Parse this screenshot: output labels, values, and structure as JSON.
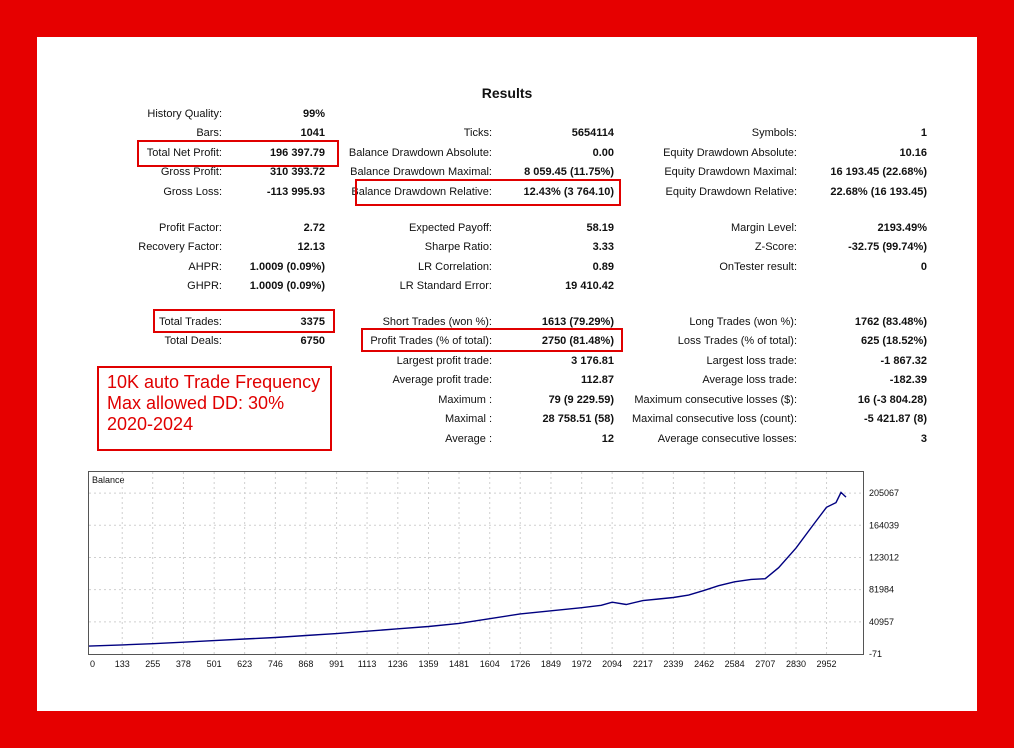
{
  "title": "Results",
  "col1": [
    {
      "label": "History Quality:",
      "value": "99%"
    },
    {
      "label": "Bars:",
      "value": "1041"
    },
    {
      "label": "Total Net Profit:",
      "value": "196 397.79"
    },
    {
      "label": "Gross Profit:",
      "value": "310 393.72"
    },
    {
      "label": "Gross Loss:",
      "value": "-113 995.93"
    },
    {
      "label": "Profit Factor:",
      "value": "2.72"
    },
    {
      "label": "Recovery Factor:",
      "value": "12.13"
    },
    {
      "label": "AHPR:",
      "value": "1.0009 (0.09%)"
    },
    {
      "label": "GHPR:",
      "value": "1.0009 (0.09%)"
    },
    {
      "label": "Total Trades:",
      "value": "3375"
    },
    {
      "label": "Total Deals:",
      "value": "6750"
    }
  ],
  "col2": [
    {
      "label": "Ticks:",
      "value": "5654114"
    },
    {
      "label": "Balance Drawdown Absolute:",
      "value": "0.00"
    },
    {
      "label": "Balance Drawdown Maximal:",
      "value": "8 059.45 (11.75%)"
    },
    {
      "label": "Balance Drawdown Relative:",
      "value": "12.43% (3 764.10)"
    },
    {
      "label": "Expected Payoff:",
      "value": "58.19"
    },
    {
      "label": "Sharpe Ratio:",
      "value": "3.33"
    },
    {
      "label": "LR Correlation:",
      "value": "0.89"
    },
    {
      "label": "LR Standard Error:",
      "value": "19 410.42"
    },
    {
      "label": "Short Trades (won %):",
      "value": "1613 (79.29%)"
    },
    {
      "label": "Profit Trades (% of total):",
      "value": "2750 (81.48%)"
    },
    {
      "label": "Largest profit trade:",
      "value": "3 176.81"
    },
    {
      "label": "Average profit trade:",
      "value": "112.87"
    },
    {
      "label": "Maximum :",
      "value": "79 (9 229.59)"
    },
    {
      "label": "Maximal :",
      "value": "28 758.51 (58)"
    },
    {
      "label": "Average :",
      "value": "12"
    }
  ],
  "col3": [
    {
      "label": "Symbols:",
      "value": "1"
    },
    {
      "label": "Equity Drawdown Absolute:",
      "value": "10.16"
    },
    {
      "label": "Equity Drawdown Maximal:",
      "value": "16 193.45 (22.68%)"
    },
    {
      "label": "Equity Drawdown Relative:",
      "value": "22.68% (16 193.45)"
    },
    {
      "label": "Margin Level:",
      "value": "2193.49%"
    },
    {
      "label": "Z-Score:",
      "value": "-32.75 (99.74%)"
    },
    {
      "label": "OnTester result:",
      "value": "0"
    },
    {
      "label": "Long Trades (won %):",
      "value": "1762 (83.48%)"
    },
    {
      "label": "Loss Trades (% of total):",
      "value": "625 (18.52%)"
    },
    {
      "label": "Largest loss trade:",
      "value": "-1 867.32"
    },
    {
      "label": "Average loss trade:",
      "value": "-182.39"
    },
    {
      "label": "Maximum consecutive losses ($):",
      "value": "16 (-3 804.28)"
    },
    {
      "label": "Maximal consecutive loss (count):",
      "value": "-5 421.87 (8)"
    },
    {
      "label": "Average consecutive losses:",
      "value": "3"
    }
  ],
  "note": {
    "lines": [
      "10K auto Trade Frequency",
      "Max allowed DD: 30%",
      "2020-2024"
    ]
  },
  "colors": {
    "frame": "#e60000",
    "highlight": "#e00000",
    "line": "#000080"
  },
  "chart_data": {
    "type": "line",
    "title": "Balance",
    "x_ticks": [
      "0",
      "133",
      "255",
      "378",
      "501",
      "623",
      "746",
      "868",
      "991",
      "1113",
      "1236",
      "1359",
      "1481",
      "1604",
      "1726",
      "1849",
      "1972",
      "2094",
      "2217",
      "2339",
      "2462",
      "2584",
      "2707",
      "2830",
      "2952"
    ],
    "y_ticks": [
      "-71",
      "40957",
      "81984",
      "123012",
      "164039",
      "205067"
    ],
    "xlim": [
      0,
      3098
    ],
    "ylim": [
      -71,
      232000
    ],
    "grid": true,
    "series": [
      {
        "x": [
          0,
          133,
          255,
          378,
          501,
          623,
          746,
          868,
          991,
          1113,
          1236,
          1359,
          1481,
          1604,
          1726,
          1849,
          1972,
          2050,
          2094,
          2150,
          2217,
          2280,
          2339,
          2400,
          2462,
          2520,
          2584,
          2650,
          2707,
          2760,
          2830,
          2900,
          2952,
          2990,
          3010,
          3030
        ],
        "y": [
          10000,
          11500,
          13000,
          15000,
          17000,
          19000,
          21000,
          23500,
          26000,
          29000,
          32000,
          35000,
          39000,
          45000,
          51000,
          55000,
          59000,
          62000,
          66000,
          63000,
          68000,
          70000,
          72000,
          75000,
          81000,
          87000,
          92000,
          95000,
          96000,
          110000,
          135000,
          165000,
          187000,
          193000,
          206000,
          200000
        ]
      }
    ]
  }
}
